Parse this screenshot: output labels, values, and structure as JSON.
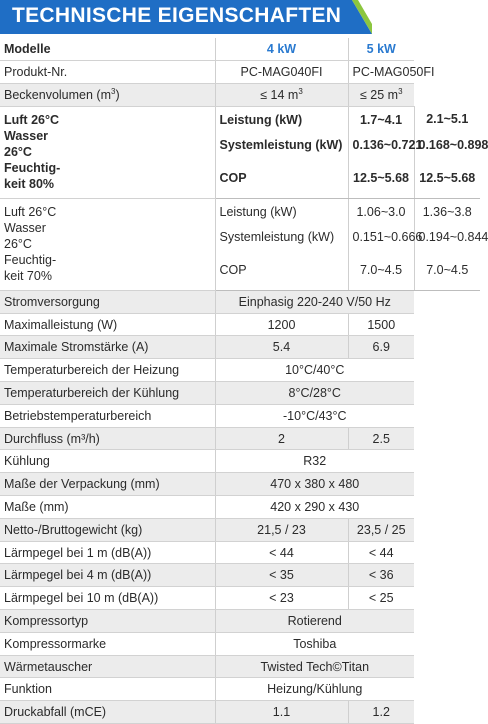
{
  "title": "TECHNISCHE EIGENSCHAFTEN",
  "colors": {
    "title_bg": "#1f6ec5",
    "title_accent": "#8cc63f",
    "model_header": "#2a7ad0",
    "row_alt": "#ececec"
  },
  "header": {
    "label": "Modelle",
    "col1": "4 kW",
    "col2": "5 kW"
  },
  "rows_top": [
    {
      "label": "Produkt-Nr.",
      "v1": "PC-MAG040FI",
      "v2": "PC-MAG050FI"
    },
    {
      "label": "Beckenvolumen (m",
      "label_sup": "3",
      "label_end": ")",
      "v1": "≤ 14 m",
      "v1_sup": "3",
      "v2": "≤ 25 m",
      "v2_sup": "3"
    }
  ],
  "group1": {
    "condition_lines": [
      "Luft 26°C",
      "Wasser",
      "26°C",
      "Feuchtig-",
      "keit 80%"
    ],
    "rows": [
      {
        "label": "Leistung (kW)",
        "v1": "1.7~4.1",
        "v2": "2.1~5.1"
      },
      {
        "label": "Systemleistung (kW)",
        "v1": "0.136~0.721",
        "v2": "0.168~0.898"
      },
      {
        "label": "COP",
        "v1": "12.5~5.68",
        "v2": "12.5~5.68"
      }
    ]
  },
  "group2": {
    "condition_lines": [
      "Luft 26°C",
      "Wasser",
      "26°C",
      "Feuchtig-",
      "keit 70%"
    ],
    "rows": [
      {
        "label": "Leistung (kW)",
        "v1": "1.06~3.0",
        "v2": "1.36~3.8"
      },
      {
        "label": "Systemleistung (kW)",
        "v1": "0.151~0.666",
        "v2": "0.194~0.844"
      },
      {
        "label": "COP",
        "v1": "7.0~4.5",
        "v2": "7.0~4.5"
      }
    ]
  },
  "rows_bottom": [
    {
      "label": "Stromversorgung",
      "span": "Einphasig 220-240 V/50 Hz"
    },
    {
      "label": "Maximalleistung (W)",
      "v1": "1200",
      "v2": "1500"
    },
    {
      "label": "Maximale Stromstärke (A)",
      "v1": "5.4",
      "v2": "6.9"
    },
    {
      "label": "Temperaturbereich der Heizung",
      "span": "10°C/40°C"
    },
    {
      "label": "Temperaturbereich der Kühlung",
      "span": "8°C/28°C"
    },
    {
      "label": "Betriebstemperaturbereich",
      "span": "-10°C/43°C"
    },
    {
      "label": "Durchfluss (m³/h)",
      "v1": "2",
      "v2": "2.5"
    },
    {
      "label": "Kühlung",
      "span": "R32"
    },
    {
      "label": "Maße der Verpackung (mm)",
      "span": "470 x 380 x 480"
    },
    {
      "label": "Maße (mm)",
      "span": "420 x 290 x 430"
    },
    {
      "label": "Netto-/Bruttogewicht (kg)",
      "v1": "21,5 / 23",
      "v2": "23,5 / 25"
    },
    {
      "label": "Lärmpegel bei 1 m (dB(A))",
      "v1": "< 44",
      "v2": "< 44"
    },
    {
      "label": "Lärmpegel bei 4 m (dB(A))",
      "v1": "< 35",
      "v2": "< 36"
    },
    {
      "label": "Lärmpegel bei 10 m (dB(A))",
      "v1": "< 23",
      "v2": "< 25"
    },
    {
      "label": "Kompressortyp",
      "span": "Rotierend"
    },
    {
      "label": "Kompressormarke",
      "span": "Toshiba"
    },
    {
      "label": "Wärmetauscher",
      "span": "Twisted Tech©Titan"
    },
    {
      "label": "Funktion",
      "span": "Heizung/Kühlung"
    },
    {
      "label": "Druckabfall (mCE)",
      "v1": "1.1",
      "v2": "1.2"
    }
  ]
}
